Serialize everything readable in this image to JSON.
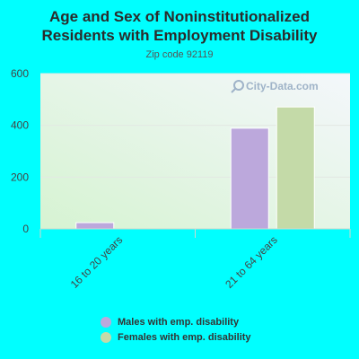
{
  "title": "Age and Sex of Noninstitutionalized Residents with Employment Disability",
  "title_line1": "Age and Sex of Noninstitutionalized",
  "title_line2": "Residents with Employment Disability",
  "subtitle": "Zip code 92119",
  "watermark": "City-Data.com",
  "colors": {
    "page_bg": "#00FFFF",
    "plot_bg_top": "#f4f7fb",
    "plot_bg_bottom": "#d6f3d2",
    "males": "#bca8dc",
    "females": "#c4daa8"
  },
  "chart_data": {
    "type": "bar",
    "categories": [
      "16 to 20 years",
      "21 to 64 years"
    ],
    "series": [
      {
        "name": "Males with emp. disability",
        "values": [
          24,
          389
        ],
        "color": "#bca8dc"
      },
      {
        "name": "Females with emp. disability",
        "values": [
          0,
          471
        ],
        "color": "#c4daa8"
      }
    ],
    "xlabel": "",
    "ylabel": "",
    "ylim": [
      0,
      600
    ],
    "yticks": [
      0,
      200,
      400,
      600
    ],
    "grid": true,
    "legend_position": "bottom"
  }
}
